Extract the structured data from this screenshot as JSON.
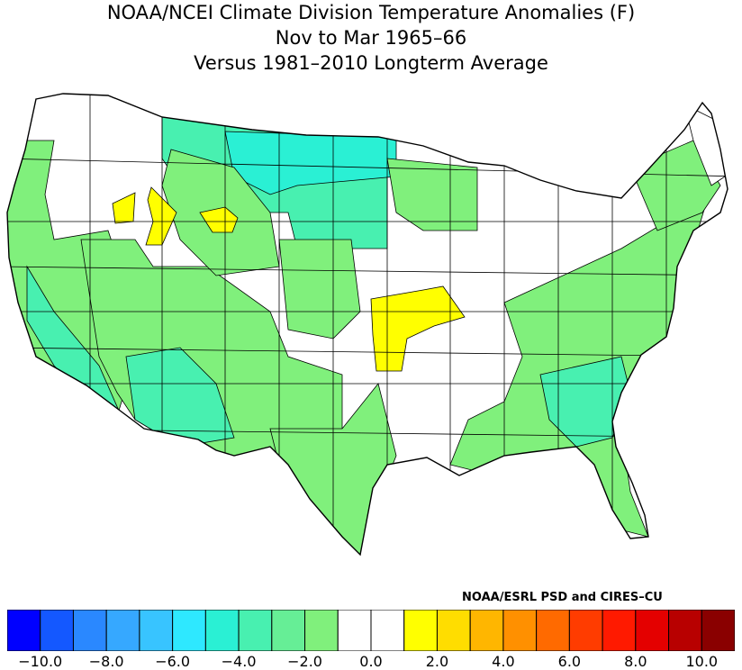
{
  "title": {
    "line1": "NOAA/NCEI Climate Division Temperature Anomalies (F)",
    "line2": "Nov to Mar 1965–66",
    "line3": "Versus 1981–2010 Longterm Average"
  },
  "credit": "NOAA/ESRL PSD and CIRES–CU",
  "legend": {
    "colors": [
      "#0000ff",
      "#1458ff",
      "#2a88ff",
      "#36a8ff",
      "#38c4ff",
      "#2ee8ff",
      "#2af0d4",
      "#48f0b0",
      "#66ee96",
      "#80f07c",
      "#ffffff",
      "#ffffff",
      "#ffff00",
      "#ffdd00",
      "#ffb600",
      "#ff9000",
      "#ff6a00",
      "#ff3c00",
      "#ff1a00",
      "#e40000",
      "#b80000",
      "#8a0000"
    ],
    "labels": [
      "−10.0",
      "−8.0",
      "−6.0",
      "−4.0",
      "−2.0",
      "0.0",
      "2.0",
      "4.0",
      "6.0",
      "8.0",
      "10.0"
    ]
  },
  "map_data": {
    "type": "choropleth",
    "region": "Contiguous United States climate divisions",
    "units": "F",
    "anomaly_classes": [
      {
        "range": "-4.0 to -3.0",
        "color": "#2af0d4",
        "areas": [
          "North Dakota",
          "northern Minnesota",
          "northeastern Montana"
        ]
      },
      {
        "range": "-3.0 to -2.0",
        "color": "#48f0b0",
        "areas": [
          "South Dakota",
          "eastern Montana",
          "western Minnesota",
          "southern California",
          "Arizona",
          "eastern North Carolina",
          "South Carolina",
          "Georgia"
        ]
      },
      {
        "range": "-2.0 to -1.0",
        "color": "#80f07c",
        "areas": [
          "Pacific coast",
          "Nevada",
          "Utah",
          "New Mexico",
          "Texas",
          "Nebraska",
          "Kansas (west)",
          "Appalachians",
          "Atlantic coast",
          "Florida",
          "Gulf coast",
          "New England (parts)"
        ]
      },
      {
        "range": "-1.0 to 1.0",
        "color": "#ffffff",
        "areas": [
          "Idaho (most)",
          "Oregon interior",
          "Colorado",
          "Oklahoma",
          "central Plains",
          "Midwest",
          "Ohio Valley",
          "Mississippi Valley",
          "Great Lakes",
          "northern New England"
        ]
      },
      {
        "range": "1.0 to 2.0",
        "color": "#ffff00",
        "areas": [
          "southern Idaho divisions",
          "southwestern Montana",
          "eastern Kansas",
          "western Missouri",
          "northeastern Oklahoma"
        ]
      }
    ]
  }
}
